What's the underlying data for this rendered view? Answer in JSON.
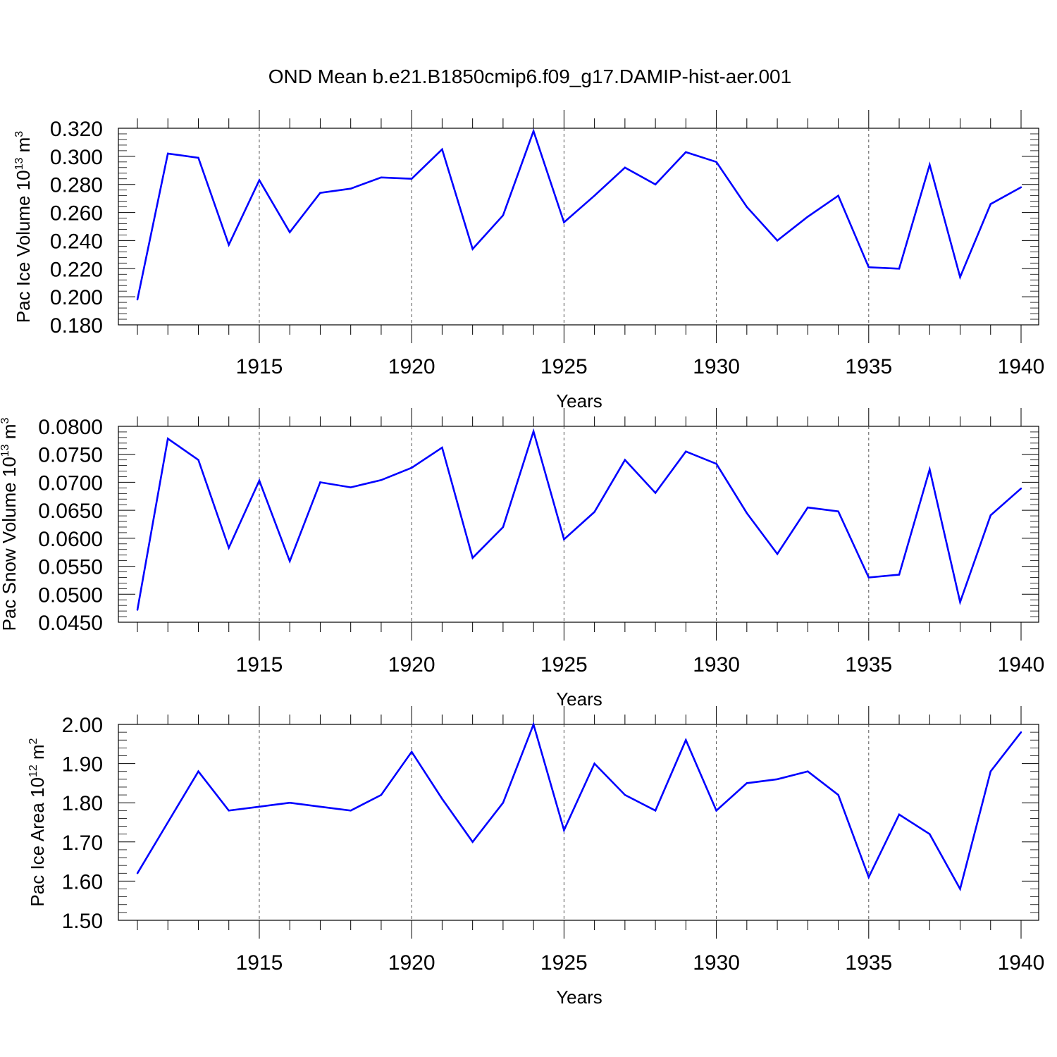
{
  "title": "OND Mean b.e21.B1850cmip6.f09_g17.DAMIP-hist-aer.001",
  "colors": {
    "line": "#0000ff",
    "axis": "#000000",
    "grid": "#555555"
  },
  "chart_data": [
    {
      "type": "line",
      "ylabel_main": "Pac Ice Volume 10",
      "ylabel_exp": "13",
      "ylabel_unit": " m",
      "ylabel_unit_exp": "3",
      "xlabel": "Years",
      "xlim": [
        1911,
        1940
      ],
      "ylim": [
        0.18,
        0.32
      ],
      "yticks": [
        "0.180",
        "0.200",
        "0.220",
        "0.240",
        "0.260",
        "0.280",
        "0.300",
        "0.320"
      ],
      "xticks": [
        "1915",
        "1920",
        "1925",
        "1930",
        "1935",
        "1940"
      ],
      "grid_x": [
        1915,
        1920,
        1925,
        1930,
        1935
      ],
      "x": [
        1911,
        1912,
        1913,
        1914,
        1915,
        1916,
        1917,
        1918,
        1919,
        1920,
        1921,
        1922,
        1923,
        1924,
        1925,
        1926,
        1927,
        1928,
        1929,
        1930,
        1931,
        1932,
        1933,
        1934,
        1935,
        1936,
        1937,
        1938,
        1939,
        1940
      ],
      "values": [
        0.198,
        0.302,
        0.299,
        0.237,
        0.283,
        0.246,
        0.274,
        0.277,
        0.285,
        0.284,
        0.305,
        0.234,
        0.258,
        0.318,
        0.253,
        0.272,
        0.292,
        0.28,
        0.303,
        0.296,
        0.264,
        0.24,
        0.257,
        0.272,
        0.221,
        0.22,
        0.294,
        0.214,
        0.266,
        0.278
      ]
    },
    {
      "type": "line",
      "ylabel_main": "Pac Snow Volume 10",
      "ylabel_exp": "13",
      "ylabel_unit": " m",
      "ylabel_unit_exp": "3",
      "xlabel": "Years",
      "xlim": [
        1911,
        1940
      ],
      "ylim": [
        0.045,
        0.08
      ],
      "yticks": [
        "0.0450",
        "0.0500",
        "0.0550",
        "0.0600",
        "0.0650",
        "0.0700",
        "0.0750",
        "0.0800"
      ],
      "xticks": [
        "1915",
        "1920",
        "1925",
        "1930",
        "1935",
        "1940"
      ],
      "grid_x": [
        1915,
        1920,
        1925,
        1930,
        1935
      ],
      "x": [
        1911,
        1912,
        1913,
        1914,
        1915,
        1916,
        1917,
        1918,
        1919,
        1920,
        1921,
        1922,
        1923,
        1924,
        1925,
        1926,
        1927,
        1928,
        1929,
        1930,
        1931,
        1932,
        1933,
        1934,
        1935,
        1936,
        1937,
        1938,
        1939,
        1940
      ],
      "values": [
        0.0472,
        0.0778,
        0.074,
        0.0583,
        0.0703,
        0.0559,
        0.07,
        0.0691,
        0.0704,
        0.0726,
        0.0762,
        0.0565,
        0.062,
        0.0791,
        0.0598,
        0.0647,
        0.074,
        0.0681,
        0.0755,
        0.0733,
        0.0645,
        0.0572,
        0.0655,
        0.0648,
        0.053,
        0.0535,
        0.0723,
        0.0486,
        0.0641,
        0.0689
      ]
    },
    {
      "type": "line",
      "ylabel_main": "Pac Ice Area 10",
      "ylabel_exp": "12",
      "ylabel_unit": " m",
      "ylabel_unit_exp": "2",
      "xlabel": "Years",
      "xlim": [
        1911,
        1940
      ],
      "ylim": [
        1.5,
        2.0
      ],
      "yticks": [
        "1.50",
        "1.60",
        "1.70",
        "1.80",
        "1.90",
        "2.00"
      ],
      "xticks": [
        "1915",
        "1920",
        "1925",
        "1930",
        "1935",
        "1940"
      ],
      "grid_x": [
        1915,
        1920,
        1925,
        1930,
        1935
      ],
      "x": [
        1911,
        1912,
        1913,
        1914,
        1915,
        1916,
        1917,
        1918,
        1919,
        1920,
        1921,
        1922,
        1923,
        1924,
        1925,
        1926,
        1927,
        1928,
        1929,
        1930,
        1931,
        1932,
        1933,
        1934,
        1935,
        1936,
        1937,
        1938,
        1939,
        1940
      ],
      "values": [
        1.62,
        1.75,
        1.88,
        1.78,
        1.79,
        1.8,
        1.79,
        1.78,
        1.82,
        1.93,
        1.81,
        1.7,
        1.8,
        2.0,
        1.73,
        1.9,
        1.82,
        1.78,
        1.96,
        1.78,
        1.85,
        1.86,
        1.88,
        1.82,
        1.61,
        1.77,
        1.72,
        1.58,
        1.88,
        1.98
      ]
    }
  ]
}
